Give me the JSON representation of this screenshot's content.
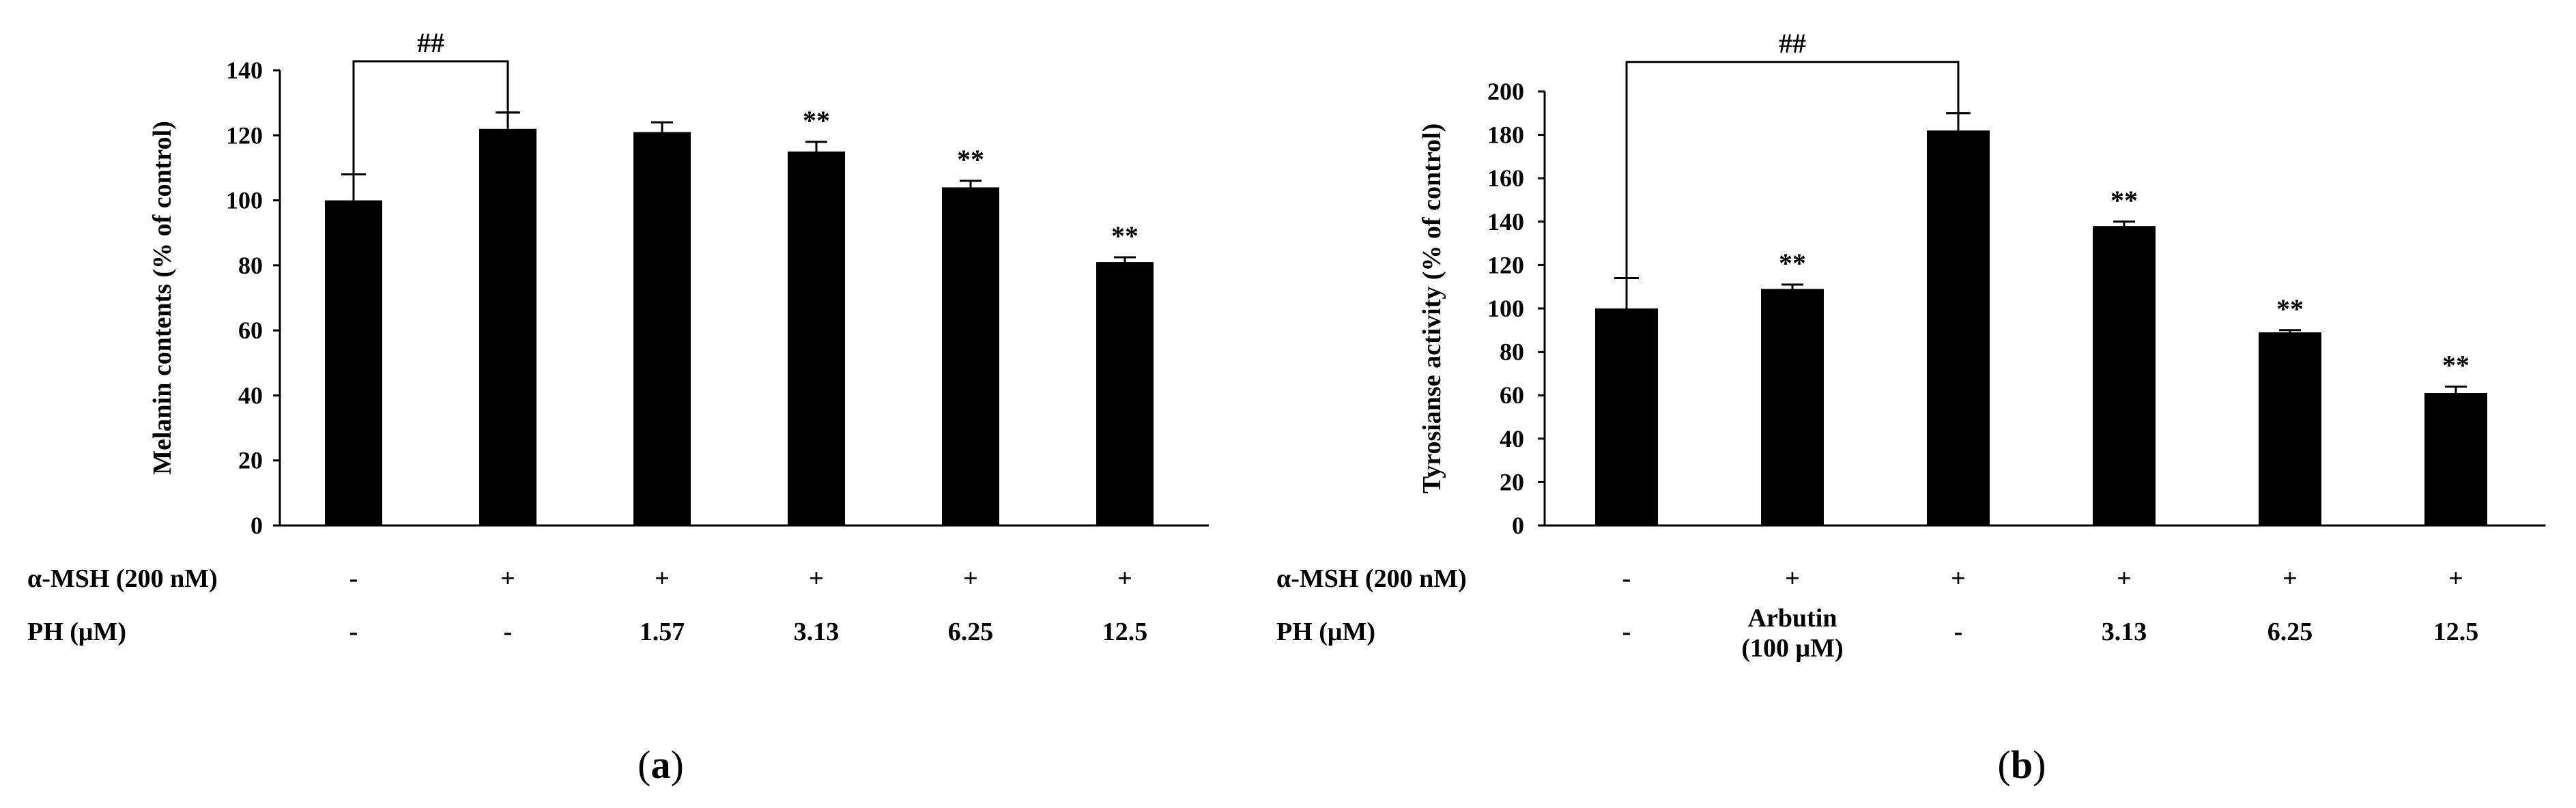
{
  "chart_data": [
    {
      "type": "bar",
      "panel_label": "(a)",
      "ylabel": "Melanin contents (% of control)",
      "ylim": [
        0,
        140
      ],
      "yticks": [
        0,
        20,
        40,
        60,
        80,
        100,
        120,
        140
      ],
      "categories": [
        "1",
        "2",
        "3",
        "4",
        "5",
        "6"
      ],
      "values": [
        100,
        122,
        121,
        115,
        104,
        81
      ],
      "errors": [
        8,
        5,
        3,
        3,
        2,
        1.5
      ],
      "significance": [
        "",
        "",
        "",
        "**",
        "**",
        "**"
      ],
      "bracket": {
        "from": 0,
        "to": 1,
        "label": "##"
      },
      "rows": [
        {
          "label": "α-MSH (200 nM)",
          "values": [
            "-",
            "+",
            "+",
            "+",
            "+",
            "+"
          ]
        },
        {
          "label": "PH (μM)",
          "values": [
            "-",
            "-",
            "1.57",
            "3.13",
            "6.25",
            "12.5"
          ]
        }
      ],
      "color": "#000000"
    },
    {
      "type": "bar",
      "panel_label": "(b)",
      "ylabel": "Tyrosianse activity (% of control)",
      "ylim": [
        0,
        200
      ],
      "yticks": [
        0,
        20,
        40,
        60,
        80,
        100,
        120,
        140,
        160,
        180,
        200
      ],
      "categories": [
        "1",
        "2",
        "3",
        "4",
        "5",
        "6"
      ],
      "values": [
        100,
        109,
        182,
        138,
        89,
        61
      ],
      "errors": [
        14,
        2,
        8,
        2,
        1,
        3
      ],
      "significance": [
        "",
        "**",
        "",
        "**",
        "**",
        "**"
      ],
      "bracket": {
        "from": 0,
        "to": 2,
        "label": "##"
      },
      "rows": [
        {
          "label": "α-MSH (200 nM)",
          "values": [
            "-",
            "+",
            "+",
            "+",
            "+",
            "+"
          ]
        },
        {
          "label": "PH (μM)",
          "values": [
            "-",
            "Arbutin\n(100 μM)",
            "-",
            "3.13",
            "6.25",
            "12.5"
          ]
        }
      ],
      "color": "#000000"
    }
  ]
}
